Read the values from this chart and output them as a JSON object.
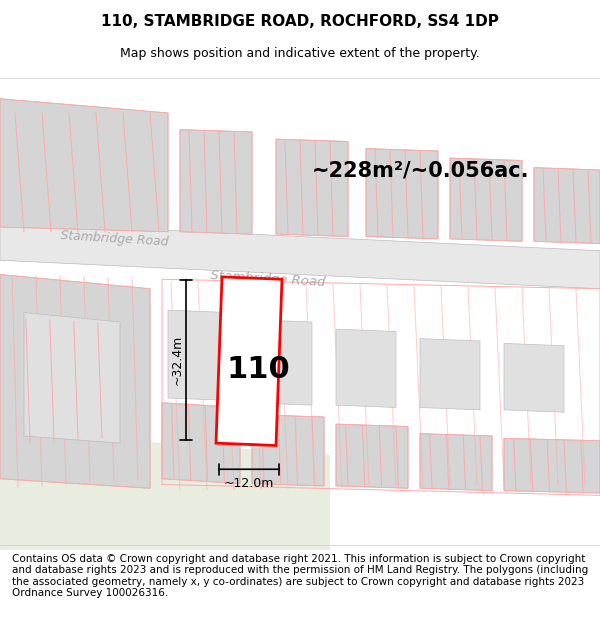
{
  "title_line1": "110, STAMBRIDGE ROAD, ROCHFORD, SS4 1DP",
  "title_line2": "Map shows position and indicative extent of the property.",
  "footer_text": "Contains OS data © Crown copyright and database right 2021. This information is subject to Crown copyright and database rights 2023 and is reproduced with the permission of HM Land Registry. The polygons (including the associated geometry, namely x, y co-ordinates) are subject to Crown copyright and database rights 2023 Ordnance Survey 100026316.",
  "area_label": "~228m²/~0.056ac.",
  "width_label": "~12.0m",
  "height_label": "~32.4m",
  "house_number": "110",
  "road_name_1": "Stambridge Road",
  "road_name_2": "Stambridge Road",
  "bg_color": "#f5f5f0",
  "map_bg": "#ffffff",
  "road_color": "#e8e8e8",
  "building_fill": "#d8d8d8",
  "building_edge": "#cccccc",
  "highlight_fill": "#ffffff",
  "highlight_edge": "#ff0000",
  "pink_line_color": "#ffaaaa",
  "green_area_color": "#e8ede0",
  "dim_line_color": "#000000",
  "title_fontsize": 11,
  "subtitle_fontsize": 9,
  "footer_fontsize": 7.5,
  "label_fontsize": 14,
  "road_label_fontsize": 11,
  "number_fontsize": 22
}
